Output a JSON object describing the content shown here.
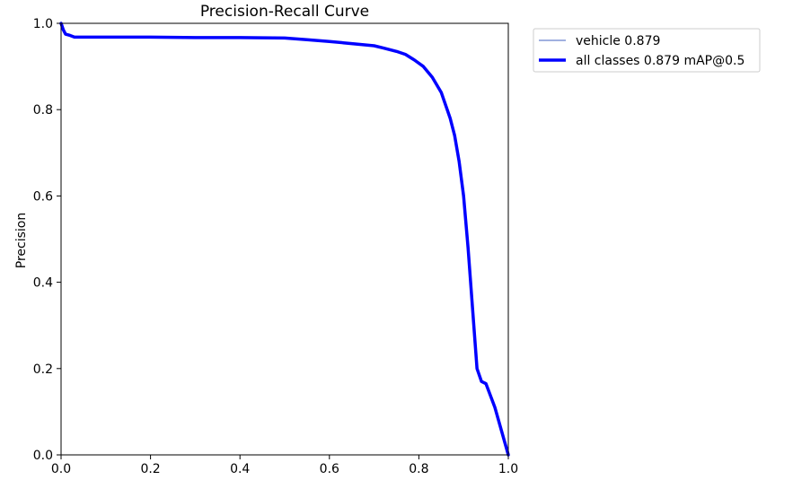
{
  "chart_data": {
    "type": "line",
    "title": "Precision-Recall Curve",
    "xlabel": "",
    "ylabel": "Precision",
    "xlim": [
      0,
      1
    ],
    "ylim": [
      0,
      1
    ],
    "xticks": [
      "0.0",
      "0.2",
      "0.4",
      "0.6",
      "0.8",
      "1.0"
    ],
    "yticks": [
      "0.0",
      "0.2",
      "0.4",
      "0.6",
      "0.8",
      "1.0"
    ],
    "grid": false,
    "legend_position": "outside-top-right",
    "series": [
      {
        "name": "vehicle 0.879",
        "color": "#4060c0",
        "linewidth": "thin",
        "x": [
          0.0,
          0.005,
          0.01,
          0.02,
          0.03,
          0.1,
          0.2,
          0.3,
          0.4,
          0.5,
          0.55,
          0.6,
          0.65,
          0.7,
          0.72,
          0.75,
          0.77,
          0.79,
          0.81,
          0.83,
          0.85,
          0.87,
          0.88,
          0.89,
          0.9,
          0.91,
          0.92,
          0.93,
          0.94,
          0.95,
          0.97,
          1.0
        ],
        "y": [
          1.0,
          0.985,
          0.975,
          0.972,
          0.968,
          0.968,
          0.968,
          0.967,
          0.967,
          0.966,
          0.962,
          0.958,
          0.953,
          0.948,
          0.943,
          0.935,
          0.928,
          0.915,
          0.9,
          0.875,
          0.84,
          0.78,
          0.74,
          0.68,
          0.6,
          0.48,
          0.34,
          0.2,
          0.17,
          0.165,
          0.11,
          0.0
        ]
      },
      {
        "name": "all classes 0.879 mAP@0.5",
        "color": "#0000ff",
        "linewidth": "thick",
        "x": [
          0.0,
          0.005,
          0.01,
          0.02,
          0.03,
          0.1,
          0.2,
          0.3,
          0.4,
          0.5,
          0.55,
          0.6,
          0.65,
          0.7,
          0.72,
          0.75,
          0.77,
          0.79,
          0.81,
          0.83,
          0.85,
          0.87,
          0.88,
          0.89,
          0.9,
          0.91,
          0.92,
          0.93,
          0.94,
          0.95,
          0.97,
          1.0
        ],
        "y": [
          1.0,
          0.985,
          0.975,
          0.972,
          0.968,
          0.968,
          0.968,
          0.967,
          0.967,
          0.966,
          0.962,
          0.958,
          0.953,
          0.948,
          0.943,
          0.935,
          0.928,
          0.915,
          0.9,
          0.875,
          0.84,
          0.78,
          0.74,
          0.68,
          0.6,
          0.48,
          0.34,
          0.2,
          0.17,
          0.165,
          0.11,
          0.0
        ]
      }
    ]
  }
}
